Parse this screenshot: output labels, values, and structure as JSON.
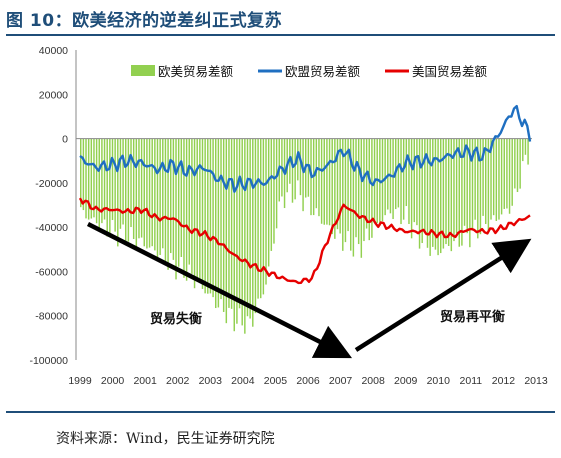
{
  "header": {
    "figure_title": "图 10：欧美经济的逆差纠正式复苏"
  },
  "footer": {
    "source": "资料来源：Wind，民生证券研究院"
  },
  "chart_data": {
    "type": "bar+line",
    "title": "",
    "xlabel": "",
    "ylabel": "",
    "ylim": [
      -100000,
      40000
    ],
    "yticks": [
      40000,
      20000,
      0,
      -20000,
      -40000,
      -60000,
      -80000,
      -100000
    ],
    "xticks": [
      "1999",
      "2000",
      "2001",
      "2002",
      "2003",
      "2004",
      "2005",
      "2006",
      "2007",
      "2008",
      "2009",
      "2010",
      "2011",
      "2012",
      "2013"
    ],
    "grid": false,
    "legend_position": "top-right",
    "series": [
      {
        "name": "欧美贸易差额",
        "kind": "bar",
        "color": "#92d050",
        "values": [
          -33000,
          -38000,
          -42000,
          -44000,
          -47000,
          -52000,
          -57000,
          -61000,
          -68000,
          -76000,
          -82000,
          -84000,
          -66000,
          -27000,
          -24000,
          -32000,
          -40000,
          -46000,
          -50000,
          -41000,
          -33000,
          -35000,
          -45000,
          -52000,
          -48000,
          -44000,
          -40000,
          -36000,
          -30000,
          -6000
        ]
      },
      {
        "name": "欧盟贸易差额",
        "kind": "line",
        "color": "#1f6fc1",
        "values": [
          -9000,
          -13000,
          -12000,
          -10000,
          -11000,
          -14000,
          -12000,
          -15000,
          -13000,
          -19000,
          -21000,
          -20000,
          -20000,
          -14000,
          -9000,
          -16000,
          -12000,
          -5000,
          -15000,
          -20000,
          -17000,
          -11000,
          -10000,
          -10000,
          -7000,
          -6000,
          -8000,
          2000,
          14000,
          2000
        ]
      },
      {
        "name": "美国贸易差额",
        "kind": "line",
        "color": "#e60000",
        "values": [
          -27000,
          -32000,
          -32000,
          -33000,
          -32000,
          -36000,
          -36000,
          -41000,
          -43000,
          -47000,
          -53000,
          -57000,
          -60000,
          -63000,
          -65000,
          -63000,
          -45000,
          -30000,
          -35000,
          -38000,
          -40000,
          -42000,
          -42000,
          -43000,
          -44000,
          -41000,
          -42000,
          -41000,
          -38000,
          -35000
        ]
      }
    ],
    "annotations": [
      {
        "text": "贸易失衡"
      },
      {
        "text": "贸易再平衡"
      }
    ]
  }
}
